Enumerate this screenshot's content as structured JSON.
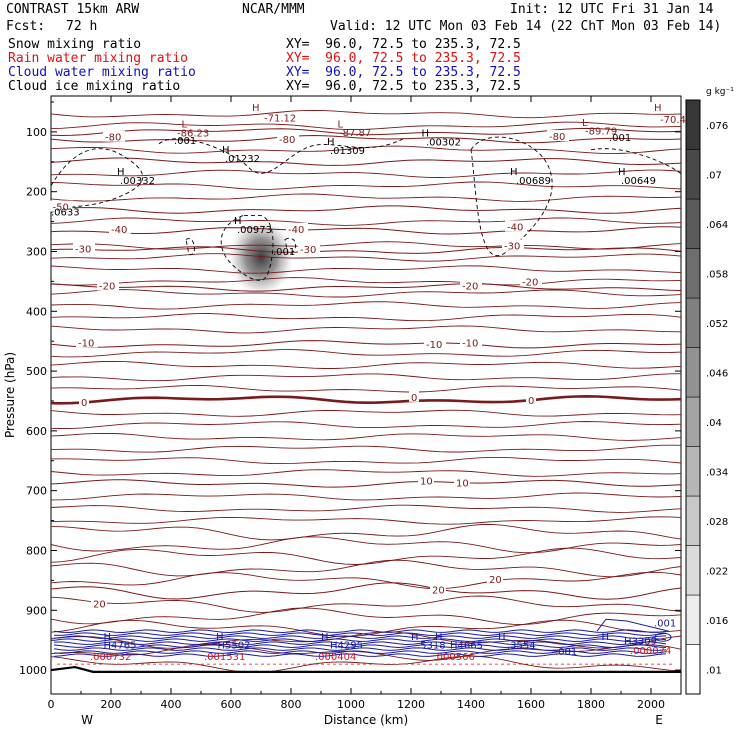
{
  "header": {
    "run_name": "CONTRAST 15km ARW",
    "org": "NCAR/MMM",
    "init": "Init: 12 UTC Fri 31 Jan 14",
    "fcst_label": "Fcst:",
    "fcst_value": "72 h",
    "valid": "Valid: 12 UTC Mon 03 Feb 14 (22 ChT Mon 03 Feb 14)",
    "fields": [
      {
        "name": "Snow mixing ratio",
        "xy": "XY=  96.0, 72.5 to 235.3, 72.5",
        "color": "#000000"
      },
      {
        "name": "Rain water mixing ratio",
        "xy": "XY=  96.0, 72.5 to 235.3, 72.5",
        "color": "#e01010"
      },
      {
        "name": "Cloud water mixing ratio",
        "xy": "XY=  96.0, 72.5 to 235.3, 72.5",
        "color": "#1010c0"
      },
      {
        "name": "Cloud ice mixing ratio",
        "xy": "XY=  96.0, 72.5 to 235.3, 72.5",
        "color": "#000000"
      }
    ]
  },
  "chart_data": {
    "type": "contour",
    "title": "Vertical cross section",
    "xlabel": "Distance (km)",
    "ylabel": "Pressure (hPa)",
    "xlim": [
      0,
      2100
    ],
    "ylim": [
      1040,
      40
    ],
    "x_ticks": [
      0,
      200,
      400,
      600,
      800,
      1000,
      1200,
      1400,
      1600,
      1800,
      2000
    ],
    "y_ticks": [
      100,
      200,
      300,
      400,
      500,
      600,
      700,
      800,
      900,
      1000
    ],
    "x_end_labels": {
      "left": "W",
      "right": "E"
    },
    "colorbar": {
      "unit": "g kg⁻¹",
      "levels": [
        0.01,
        0.016,
        0.022,
        0.028,
        0.034,
        0.04,
        0.046,
        0.052,
        0.058,
        0.064,
        0.07,
        0.076
      ],
      "labels": [
        ".01",
        ".016",
        ".022",
        ".028",
        ".034",
        ".04",
        ".046",
        ".052",
        ".058",
        ".064",
        ".07",
        ".076"
      ]
    },
    "temperature_isotherms": [
      {
        "value": -80,
        "p": 112,
        "labels": [
          {
            "text": "-80",
            "x": 180,
            "p": 108
          },
          {
            "text": "-80",
            "x": 760,
            "p": 112
          },
          {
            "text": "-80",
            "x": 1660,
            "p": 107
          }
        ]
      },
      {
        "value": -70,
        "p": 100,
        "labels": []
      },
      {
        "value": -60,
        "p": 150,
        "labels": []
      },
      {
        "value": -50,
        "p": 230,
        "labels": [
          {
            "text": "-50",
            "x": 5,
            "p": 225
          }
        ]
      },
      {
        "value": -40,
        "p": 265,
        "labels": [
          {
            "text": "-40",
            "x": 200,
            "p": 262
          },
          {
            "text": "-40",
            "x": 790,
            "p": 262
          },
          {
            "text": "-40",
            "x": 1520,
            "p": 258
          }
        ]
      },
      {
        "value": -30,
        "p": 298,
        "labels": [
          {
            "text": "-30",
            "x": 80,
            "p": 295
          },
          {
            "text": "-30",
            "x": 830,
            "p": 296
          },
          {
            "text": "-30",
            "x": 1510,
            "p": 290
          }
        ]
      },
      {
        "value": -20,
        "p": 360,
        "labels": [
          {
            "text": "-20",
            "x": 160,
            "p": 357
          },
          {
            "text": "-20",
            "x": 1370,
            "p": 357
          },
          {
            "text": "-20",
            "x": 1570,
            "p": 350
          }
        ]
      },
      {
        "value": -10,
        "p": 455,
        "labels": [
          {
            "text": "-10",
            "x": 90,
            "p": 452
          },
          {
            "text": "-10",
            "x": 1250,
            "p": 455
          },
          {
            "text": "-10",
            "x": 1370,
            "p": 452
          }
        ]
      },
      {
        "value": 0,
        "p": 548,
        "labels": [
          {
            "text": "0",
            "x": 100,
            "p": 552
          },
          {
            "text": "0",
            "x": 1200,
            "p": 543
          },
          {
            "text": "0",
            "x": 1590,
            "p": 548
          }
        ]
      },
      {
        "value": 10,
        "p": 688,
        "labels": [
          {
            "text": "10",
            "x": 1230,
            "p": 683
          },
          {
            "text": "10",
            "x": 1350,
            "p": 686
          }
        ]
      },
      {
        "value": 20,
        "p": 868,
        "labels": [
          {
            "text": "20",
            "x": 140,
            "p": 889
          },
          {
            "text": "20",
            "x": 1270,
            "p": 865
          },
          {
            "text": "20",
            "x": 1460,
            "p": 848
          }
        ]
      }
    ],
    "extrema_labels": [
      {
        "text": "H",
        "x": 670,
        "p": 65,
        "color": "#8b1a1a"
      },
      {
        "text": "-71.12",
        "x": 710,
        "p": 83,
        "color": "#8b1a1a"
      },
      {
        "text": "L",
        "x": 435,
        "p": 93,
        "color": "#8b1a1a"
      },
      {
        "text": "-86.23",
        "x": 420,
        "p": 108,
        "color": "#8b1a1a"
      },
      {
        "text": "L",
        "x": 955,
        "p": 93,
        "color": "#8b1a1a"
      },
      {
        "text": "-87.87",
        "x": 960,
        "p": 107,
        "color": "#8b1a1a"
      },
      {
        "text": "L",
        "x": 1770,
        "p": 90,
        "color": "#8b1a1a"
      },
      {
        "text": "-89.79",
        "x": 1780,
        "p": 104,
        "color": "#8b1a1a"
      },
      {
        "text": "H",
        "x": 2010,
        "p": 65,
        "color": "#8b1a1a"
      },
      {
        "text": "-70.4",
        "x": 2030,
        "p": 85,
        "color": "#8b1a1a"
      }
    ],
    "snow_cloud_ice_labels": [
      {
        "text": ".001",
        "x": 410,
        "p": 120
      },
      {
        "text": "H",
        "x": 570,
        "p": 135
      },
      {
        "text": ".01232",
        "x": 580,
        "p": 150
      },
      {
        "text": "H",
        "x": 920,
        "p": 122
      },
      {
        "text": ".01309",
        "x": 930,
        "p": 137
      },
      {
        "text": "H",
        "x": 1235,
        "p": 108
      },
      {
        "text": ".00302",
        "x": 1250,
        "p": 123
      },
      {
        "text": "H",
        "x": 220,
        "p": 172
      },
      {
        "text": ".00332",
        "x": 230,
        "p": 187
      },
      {
        "text": "H",
        "x": 1530,
        "p": 172
      },
      {
        "text": ".00689",
        "x": 1550,
        "p": 187
      },
      {
        "text": "H",
        "x": 1890,
        "p": 172
      },
      {
        "text": ".00649",
        "x": 1900,
        "p": 187
      },
      {
        "text": ".001",
        "x": 1860,
        "p": 115
      },
      {
        "text": ".0633",
        "x": 0,
        "p": 240
      },
      {
        "text": "H",
        "x": 610,
        "p": 254
      },
      {
        "text": ".00973",
        "x": 620,
        "p": 269
      },
      {
        "text": ".001",
        "x": 740,
        "p": 306
      }
    ],
    "rain_water_labels": [
      {
        "text": ".000732",
        "x": 130,
        "p": 983
      },
      {
        "text": ".001531",
        "x": 510,
        "p": 983
      },
      {
        "text": ".000404",
        "x": 880,
        "p": 983
      },
      {
        "text": ".000566",
        "x": 1275,
        "p": 983
      },
      {
        "text": ".000074",
        "x": 1930,
        "p": 973
      }
    ],
    "cloud_water_labels": [
      {
        "text": "H",
        "x": 175,
        "p": 950
      },
      {
        "text": "H4765",
        "x": 175,
        "p": 964
      },
      {
        "text": "H",
        "x": 550,
        "p": 950
      },
      {
        "text": "H5502",
        "x": 555,
        "p": 964
      },
      {
        "text": "H",
        "x": 900,
        "p": 950
      },
      {
        "text": "H4295",
        "x": 930,
        "p": 964
      },
      {
        "text": "H",
        "x": 1200,
        "p": 950
      },
      {
        "text": ".5318",
        "x": 1220,
        "p": 964
      },
      {
        "text": "H",
        "x": 1280,
        "p": 950
      },
      {
        "text": "H4665",
        "x": 1330,
        "p": 964
      },
      {
        "text": "H",
        "x": 1490,
        "p": 950
      },
      {
        "text": ".3554",
        "x": 1520,
        "p": 964
      },
      {
        "text": ".001",
        "x": 1680,
        "p": 975
      },
      {
        "text": "H",
        "x": 1835,
        "p": 950
      },
      {
        "text": "H3309",
        "x": 1910,
        "p": 957
      },
      {
        "text": ".001",
        "x": 2010,
        "p": 927
      }
    ],
    "snow_maximum": {
      "x": 700,
      "p": 310,
      "value": 0.07
    }
  }
}
